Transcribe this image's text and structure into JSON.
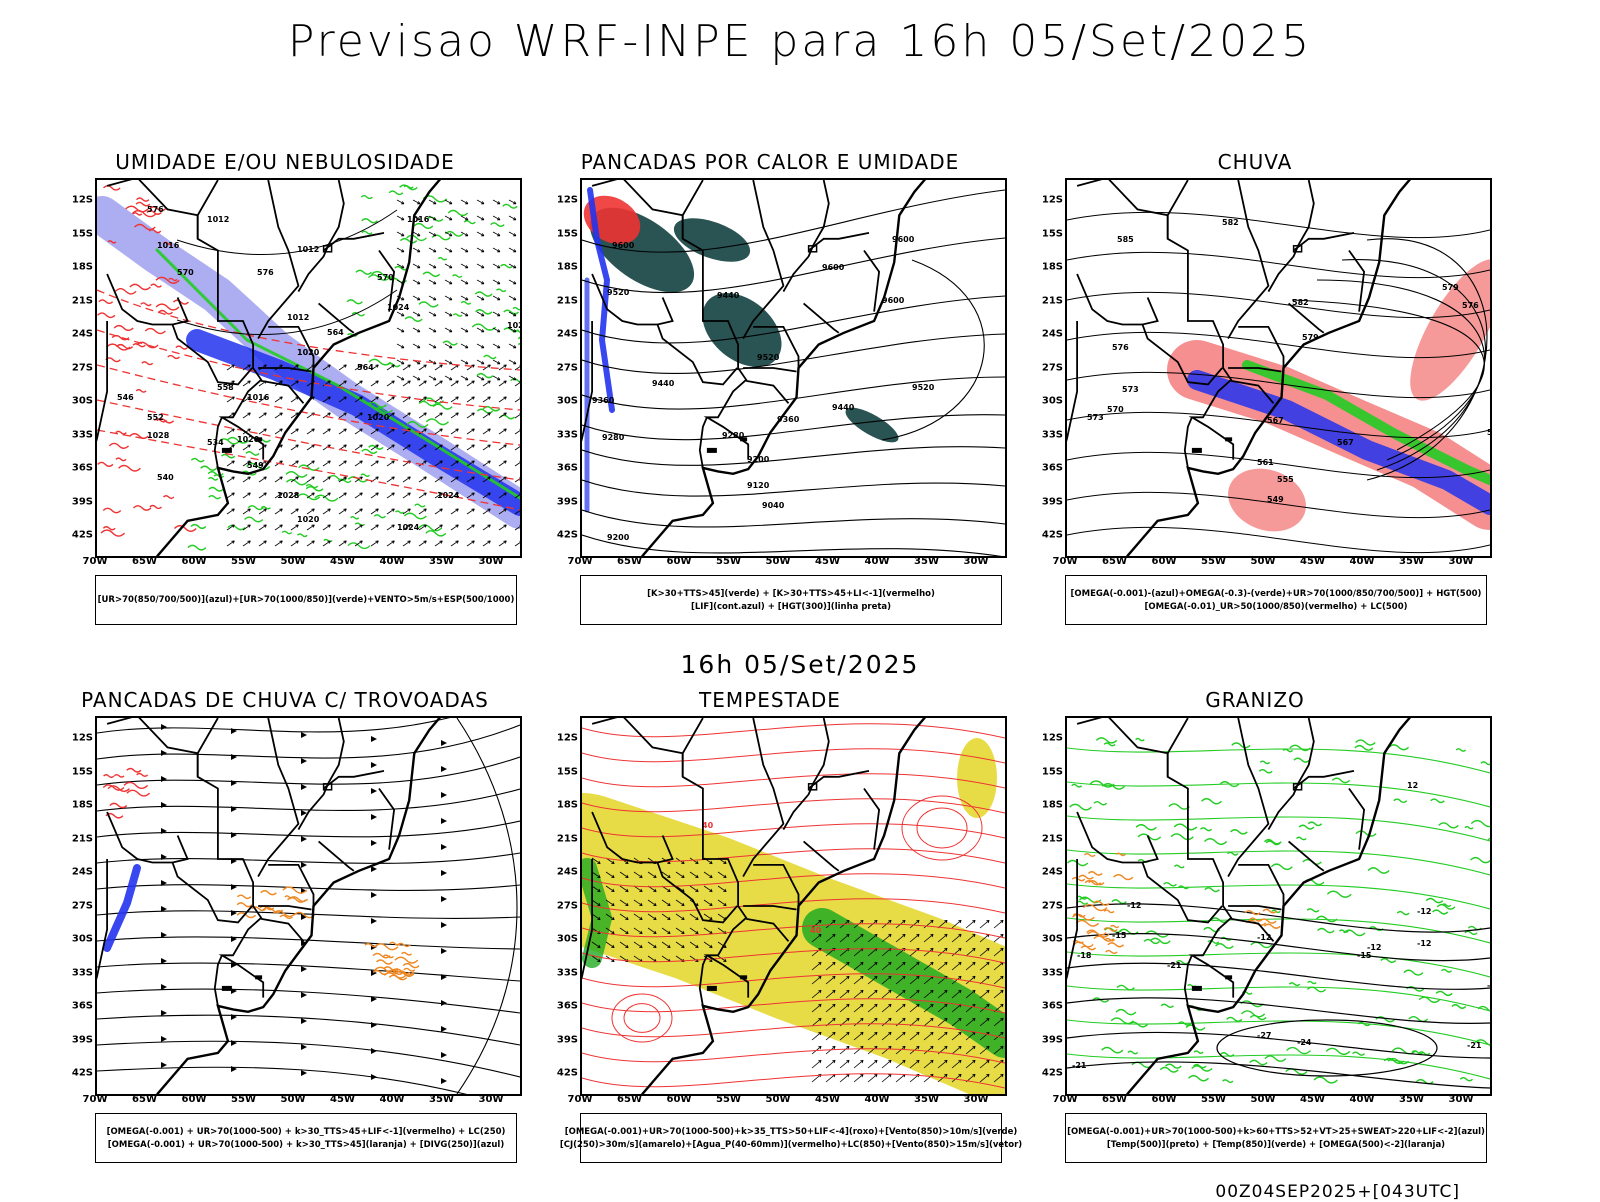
{
  "header": {
    "title": "Previsao WRF-INPE  para 16h 05/Set/2025"
  },
  "mid_caption": "16h 05/Set/2025",
  "footer": {
    "stamp": "00Z04SEP2025+[043UTC]"
  },
  "axes": {
    "lat_labels": [
      "12S",
      "15S",
      "18S",
      "21S",
      "24S",
      "27S",
      "30S",
      "33S",
      "36S",
      "39S",
      "42S"
    ],
    "lon_labels": [
      "70W",
      "65W",
      "60W",
      "55W",
      "50W",
      "45W",
      "40W",
      "35W",
      "30W"
    ]
  },
  "colors": {
    "blue": "#2233ee",
    "lavender": "#9999ee",
    "green": "#22cc22",
    "red": "#ee3333",
    "dark_teal": "#1f4a4a",
    "yellow": "#e6d832",
    "orange": "#ee8822",
    "black": "#000000"
  },
  "panels": [
    {
      "id": "umidade",
      "title": "UMIDADE E/OU NEBULOSIDADE",
      "legend": [
        "[UR>70(850/700/500)](azul)+[UR>70(1000/850)](verde)+VENTO>5m/s+ESP(500/1000)"
      ],
      "contour_labels": [
        "1012",
        "1016",
        "1012",
        "1016",
        "1012",
        "1020",
        "1024",
        "1020",
        "1016",
        "1024",
        "1028",
        "1020",
        "1028",
        "1024",
        "1020",
        "1024",
        "576",
        "570",
        "576",
        "570",
        "564",
        "558",
        "552",
        "546",
        "540",
        "534",
        "549",
        "564"
      ]
    },
    {
      "id": "pancadas-calor",
      "title": "PANCADAS POR CALOR E UMIDADE",
      "legend": [
        "[K>30+TTS>45](verde) + [K>30+TTS>45+LI<-1](vermelho)",
        "[LIF](cont.azul) + [HGT(300)](linha preta)"
      ],
      "contour_labels": [
        "9600",
        "9520",
        "9600",
        "9600",
        "9600",
        "9440",
        "9520",
        "9520",
        "9440",
        "9440",
        "9360",
        "9360",
        "9280",
        "9280",
        "9200",
        "9120",
        "9040",
        "9200"
      ]
    },
    {
      "id": "chuva",
      "title": "CHUVA",
      "legend": [
        "[OMEGA(-0.001)-(azul)+OMEGA(-0.3)-(verde)+UR>70(1000/850/700/500)] + HGT(500)",
        "[OMEGA(-0.01)_UR>50(1000/850)(vermelho) + LC(500)"
      ],
      "contour_labels": [
        "585",
        "582",
        "582",
        "579",
        "576",
        "579",
        "576",
        "573",
        "570",
        "573",
        "567",
        "567",
        "561",
        "555",
        "549",
        "576"
      ]
    },
    {
      "id": "pancadas-trovoadas",
      "title": "PANCADAS DE CHUVA C/ TROVOADAS",
      "legend": [
        "[OMEGA(-0.001) + UR>70(1000-500) + k>30_TTS>45+LIF<-1](vermelho) + LC(250)",
        "[OMEGA(-0.001) + UR>70(1000-500) + k>30_TTS>45](laranja) + [DIVG(250)](azul)"
      ],
      "contour_labels": []
    },
    {
      "id": "tempestade",
      "title": "TEMPESTADE",
      "legend": [
        "[OMEGA(-0.001)+UR>70(1000-500)+k>35_TTS>50+LIF<-4](roxo)+[Vento(850)>10m/s](verde)",
        "[CJ(250)>30m/s](amarelo)+[Agua_P(40-60mm)](vermelho)+LC(850)+[Vento(850)>15m/s](vetor)"
      ],
      "contour_labels": [
        "40",
        "40"
      ]
    },
    {
      "id": "granizo",
      "title": "GRANIZO",
      "legend": [
        "[OMEGA(-0.001)+UR>70(1000-500)+k>60+TTS>52+VT>25+SWEAT>220+LIF<-2](azul)",
        "[Temp(500)](preto) + [Temp(850)](verde) + [OMEGA(500)<-2](laranja)"
      ],
      "contour_labels": [
        "12",
        "-12",
        "-12",
        "-12",
        "-15",
        "-15",
        "-18",
        "-18",
        "-21",
        "-21",
        "-24",
        "-27",
        "-12",
        "-21",
        "-12"
      ]
    }
  ]
}
